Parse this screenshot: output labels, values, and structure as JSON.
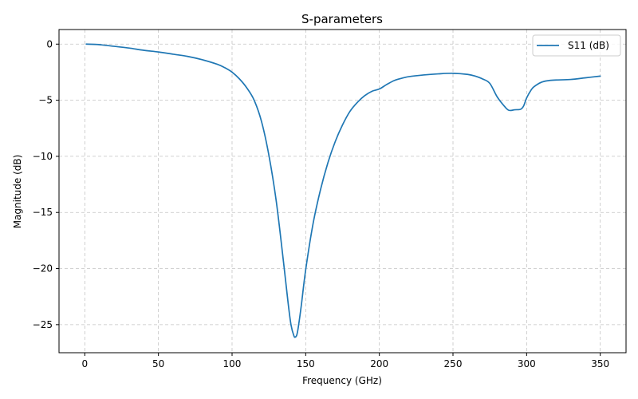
{
  "chart_data": {
    "type": "line",
    "title": "S-parameters",
    "xlabel": "Frequency (GHz)",
    "ylabel": "Magnitude (dB)",
    "xlim": [
      -17.5,
      367.5
    ],
    "ylim": [
      -27.5,
      1.3
    ],
    "xticks": [
      0,
      50,
      100,
      150,
      200,
      250,
      300,
      350
    ],
    "yticks": [
      0,
      -5,
      -10,
      -15,
      -20,
      -25
    ],
    "xtick_labels": [
      "0",
      "50",
      "100",
      "150",
      "200",
      "250",
      "300",
      "350"
    ],
    "ytick_labels": [
      "0",
      "−5",
      "−10",
      "−15",
      "−20",
      "−25"
    ],
    "grid": true,
    "legend_position": "top-right",
    "series": [
      {
        "name": "S11 (dB)",
        "color": "#1f77b4",
        "x": [
          1,
          10,
          20,
          30,
          40,
          50,
          60,
          70,
          80,
          90,
          95,
          100,
          105,
          110,
          115,
          120,
          125,
          130,
          135,
          138,
          140,
          142,
          143,
          144,
          145,
          147,
          150,
          155,
          160,
          165,
          170,
          175,
          180,
          185,
          190,
          195,
          200,
          205,
          210,
          215,
          220,
          230,
          240,
          250,
          260,
          265,
          270,
          275,
          280,
          285,
          288,
          292,
          296,
          298,
          300,
          303,
          305,
          310,
          315,
          320,
          330,
          340,
          350
        ],
        "y": [
          0.0,
          -0.05,
          -0.2,
          -0.35,
          -0.55,
          -0.7,
          -0.9,
          -1.1,
          -1.4,
          -1.8,
          -2.1,
          -2.5,
          -3.1,
          -3.9,
          -5.0,
          -6.9,
          -9.9,
          -14.0,
          -19.5,
          -23.0,
          -25.0,
          -26.0,
          -26.1,
          -25.9,
          -25.2,
          -23.3,
          -20.1,
          -16.0,
          -13.0,
          -10.6,
          -8.7,
          -7.2,
          -6.0,
          -5.2,
          -4.6,
          -4.2,
          -4.0,
          -3.6,
          -3.25,
          -3.05,
          -2.9,
          -2.75,
          -2.65,
          -2.6,
          -2.7,
          -2.85,
          -3.1,
          -3.5,
          -4.7,
          -5.55,
          -5.9,
          -5.85,
          -5.8,
          -5.5,
          -4.8,
          -4.1,
          -3.8,
          -3.4,
          -3.25,
          -3.2,
          -3.15,
          -3.0,
          -2.85
        ]
      }
    ]
  }
}
